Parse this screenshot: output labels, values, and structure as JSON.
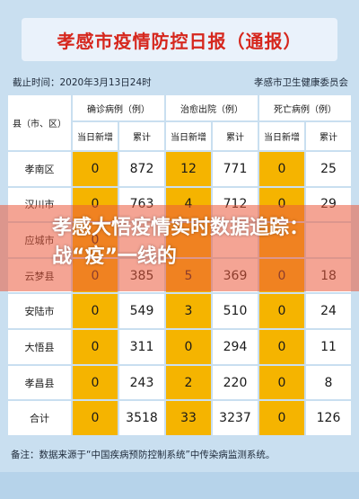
{
  "title": "孝感市疫情防控日报（通报）",
  "deadline": "截止时间：2020年3月13日24时",
  "issuer": "孝感市卫生健康委员会",
  "table": {
    "county_header": "县（市、区）",
    "groups": [
      "确诊病例（例）",
      "治愈出院（例）",
      "死亡病例（例）"
    ],
    "subheaders": [
      "当日新增",
      "累计",
      "当日新增",
      "累计",
      "当日新增",
      "累计"
    ],
    "rows": [
      {
        "name": "孝南区",
        "values": [
          "0",
          "872",
          "12",
          "771",
          "0",
          "25"
        ]
      },
      {
        "name": "汉川市",
        "values": [
          "0",
          "763",
          "4",
          "712",
          "0",
          "29"
        ]
      },
      {
        "name": "应城市",
        "values": [
          "0",
          "",
          "",
          "",
          "",
          ""
        ]
      },
      {
        "name": "云梦县",
        "values": [
          "0",
          "385",
          "5",
          "369",
          "0",
          "18"
        ]
      },
      {
        "name": "安陆市",
        "values": [
          "0",
          "549",
          "3",
          "510",
          "0",
          "24"
        ]
      },
      {
        "name": "大悟县",
        "values": [
          "0",
          "311",
          "0",
          "294",
          "0",
          "11"
        ]
      },
      {
        "name": "孝昌县",
        "values": [
          "0",
          "243",
          "2",
          "220",
          "0",
          "8"
        ]
      },
      {
        "name": "合计",
        "values": [
          "0",
          "3518",
          "33",
          "3237",
          "0",
          "126"
        ]
      }
    ]
  },
  "headline": "孝感大悟疫情实时数据追踪：战“疫”一线的",
  "note": "备注：数据来源于“中国疾病预防控制系统”中传染病监测系统。",
  "colors": {
    "highlight": "#f5b400",
    "title_red": "#d6271d",
    "overlay": "#eb5a3c"
  }
}
